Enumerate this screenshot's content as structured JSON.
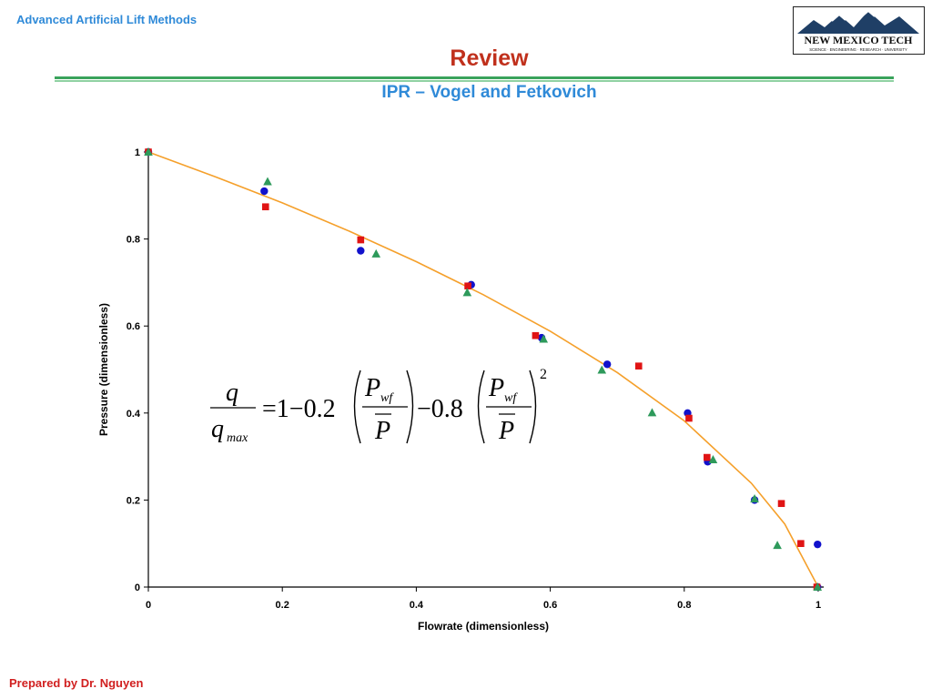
{
  "header": {
    "course_label": "Advanced Artificial Lift Methods",
    "logo": {
      "main_text": "NEW MEXICO TECH",
      "sub_text": "SCIENCE · ENGINEERING · RESEARCH · UNIVERSITY",
      "colors": {
        "mountain": "#1f3f66",
        "snow": "#ffffff"
      }
    }
  },
  "title": "Review",
  "subtitle": "IPR – Vogel and Fetkovich",
  "footer": "Prepared by Dr. Nguyen",
  "chart_data": {
    "type": "scatter",
    "xlabel": "Flowrate (dimensionless)",
    "ylabel": "Pressure (dimensionless)",
    "xlim": [
      0,
      1
    ],
    "ylim": [
      0,
      1
    ],
    "x_ticks": [
      "0",
      "0.2",
      "0.4",
      "0.6",
      "0.8",
      "1"
    ],
    "y_ticks": [
      "0",
      "0.2",
      "0.4",
      "0.6",
      "0.8",
      "1"
    ],
    "grid": false,
    "legend": "none",
    "equation": {
      "lhs_num": "q",
      "lhs_den": "q",
      "lhs_den_sub": "max",
      "rhs_a": "=1−0.2",
      "rhs_b": "−0.8",
      "ratio_num": "P",
      "ratio_num_sub": "wf",
      "ratio_den": "P",
      "exponent": "2"
    },
    "series": [
      {
        "marker": "circle",
        "color": "#1111cc",
        "points": [
          [
            0.0,
            1.0
          ],
          [
            0.173,
            0.91
          ],
          [
            0.317,
            0.773
          ],
          [
            0.482,
            0.695
          ],
          [
            0.587,
            0.573
          ],
          [
            0.685,
            0.512
          ],
          [
            0.805,
            0.4
          ],
          [
            0.835,
            0.288
          ],
          [
            0.905,
            0.2
          ],
          [
            0.999,
            0.098
          ],
          [
            0.999,
            0.0
          ]
        ]
      },
      {
        "marker": "square",
        "color": "#e01414",
        "points": [
          [
            0.0,
            1.0
          ],
          [
            0.175,
            0.874
          ],
          [
            0.317,
            0.798
          ],
          [
            0.477,
            0.692
          ],
          [
            0.578,
            0.578
          ],
          [
            0.732,
            0.508
          ],
          [
            0.807,
            0.388
          ],
          [
            0.834,
            0.298
          ],
          [
            0.945,
            0.192
          ],
          [
            0.974,
            0.1
          ],
          [
            0.998,
            0.0
          ]
        ]
      },
      {
        "marker": "triangle",
        "color": "#2e9a5b",
        "points": [
          [
            0.0,
            1.0
          ],
          [
            0.178,
            0.932
          ],
          [
            0.34,
            0.766
          ],
          [
            0.476,
            0.677
          ],
          [
            0.59,
            0.57
          ],
          [
            0.677,
            0.499
          ],
          [
            0.752,
            0.401
          ],
          [
            0.843,
            0.293
          ],
          [
            0.905,
            0.203
          ],
          [
            0.939,
            0.096
          ],
          [
            0.999,
            0.0
          ]
        ]
      }
    ],
    "curve": {
      "color": "#f5a02b",
      "points": [
        [
          0.0,
          1.0
        ],
        [
          0.1,
          0.943
        ],
        [
          0.2,
          0.883
        ],
        [
          0.3,
          0.818
        ],
        [
          0.4,
          0.748
        ],
        [
          0.5,
          0.672
        ],
        [
          0.6,
          0.588
        ],
        [
          0.7,
          0.493
        ],
        [
          0.8,
          0.382
        ],
        [
          0.9,
          0.239
        ],
        [
          0.95,
          0.145
        ],
        [
          1.0,
          0.0
        ]
      ]
    }
  }
}
